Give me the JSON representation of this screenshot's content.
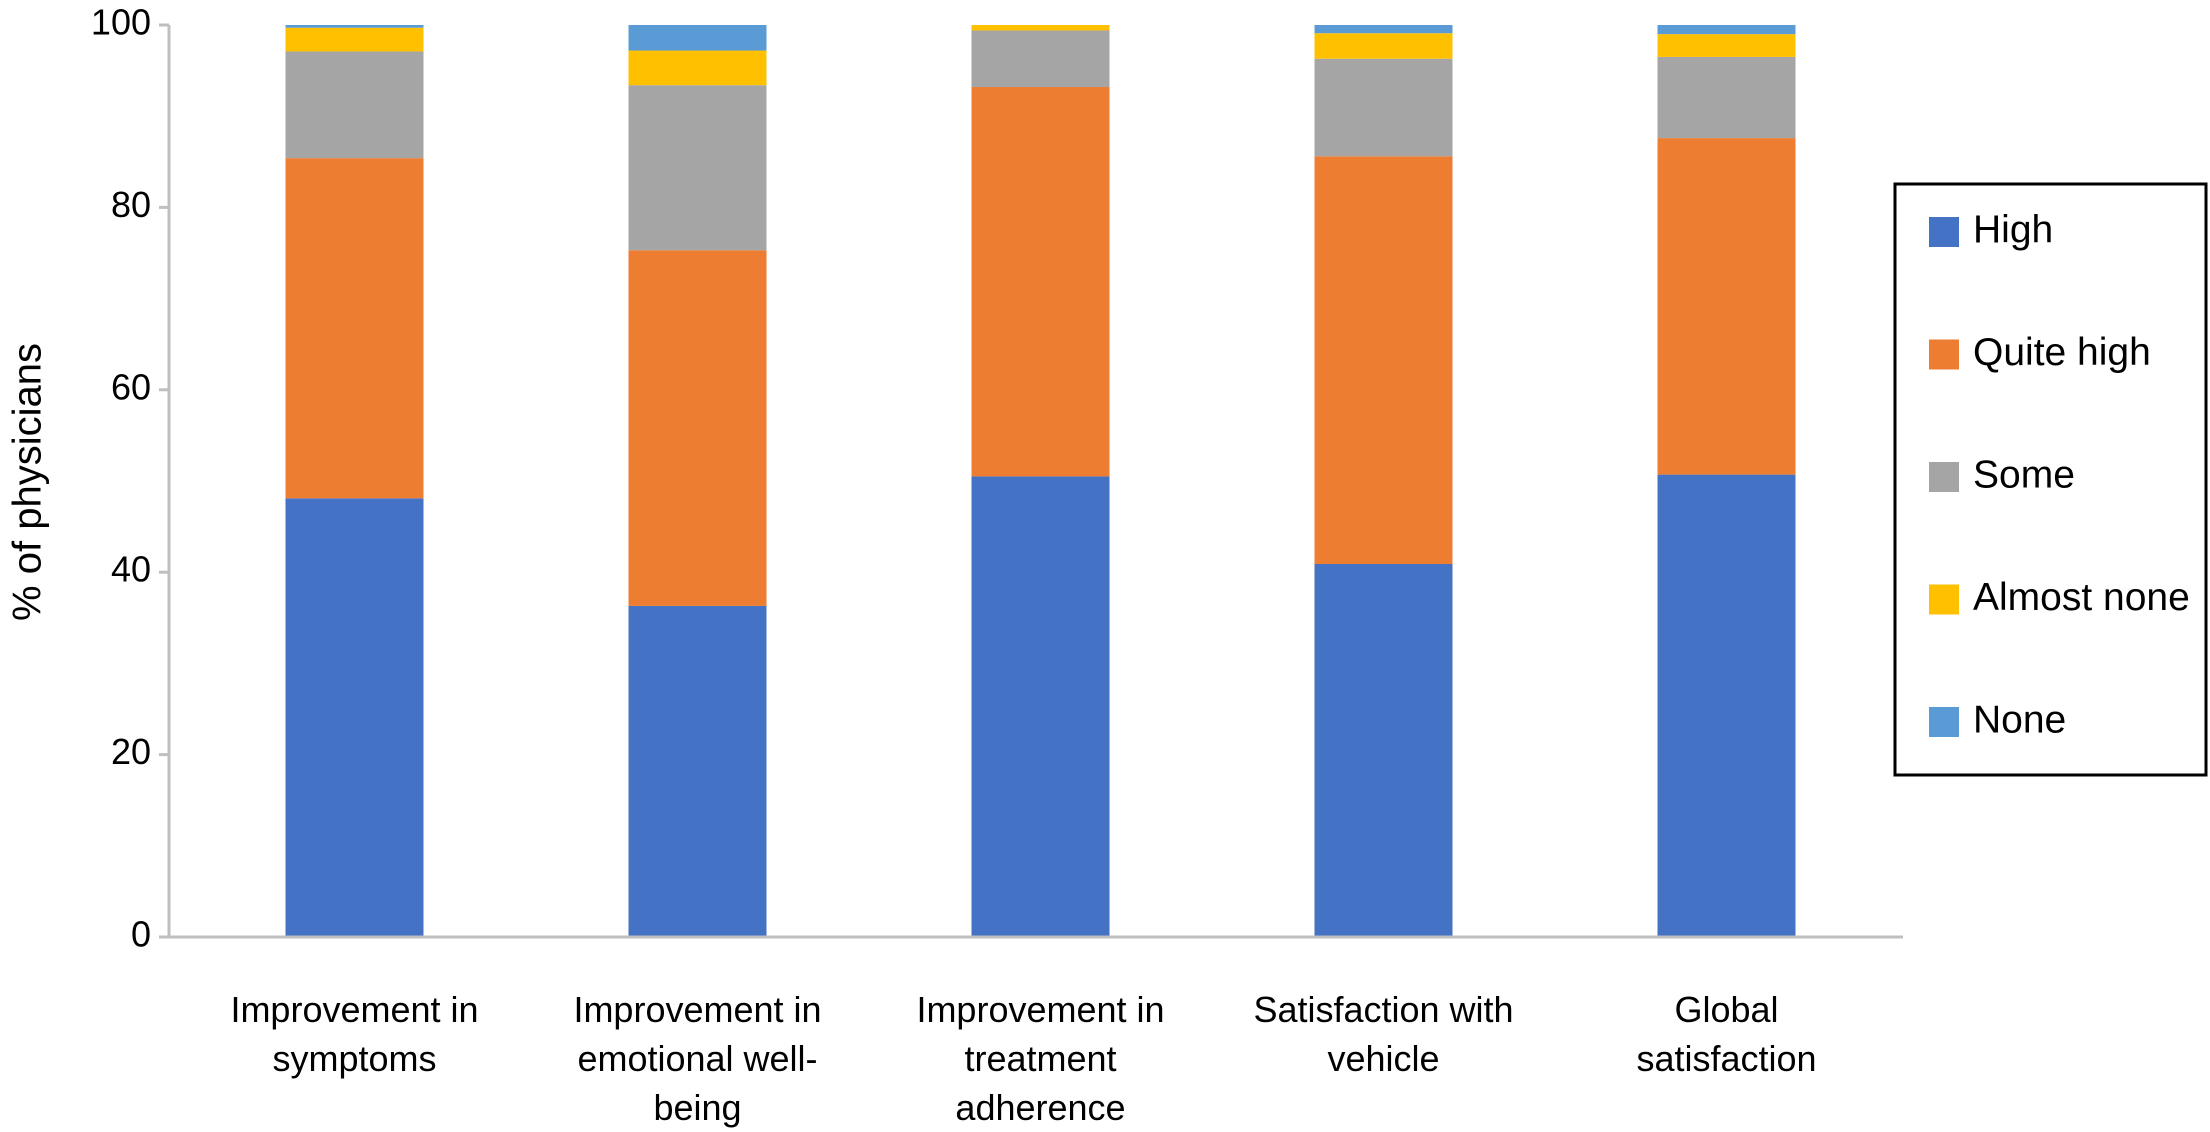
{
  "chart_data": {
    "type": "stacked_bar",
    "y_label": "% of physicians",
    "categories": [
      "Improvement in symptoms",
      "Improvement in emotional well-being",
      "Improvement in treatment adherence",
      "Satisfaction with vehicle",
      "Global satisfaction"
    ],
    "series": [
      {
        "name": "High",
        "color": "#4472c4",
        "values": [
          48.1,
          36.3,
          50.5,
          40.9,
          50.7
        ]
      },
      {
        "name": "Quite high",
        "color": "#ed7d31",
        "values": [
          37.3,
          39.0,
          42.7,
          44.7,
          36.9
        ]
      },
      {
        "name": "Some",
        "color": "#a5a5a5",
        "values": [
          11.7,
          18.1,
          6.2,
          10.7,
          8.9
        ]
      },
      {
        "name": "Almost none",
        "color": "#ffc000",
        "values": [
          2.6,
          3.8,
          0.6,
          2.8,
          2.5
        ]
      },
      {
        "name": "None",
        "color": "#5b9bd5",
        "values": [
          0.3,
          2.8,
          0,
          0.9,
          1.0
        ]
      }
    ],
    "ylim": [
      0,
      100
    ],
    "yticks": [
      0,
      20,
      40,
      60,
      80,
      100
    ],
    "legend": "right"
  }
}
